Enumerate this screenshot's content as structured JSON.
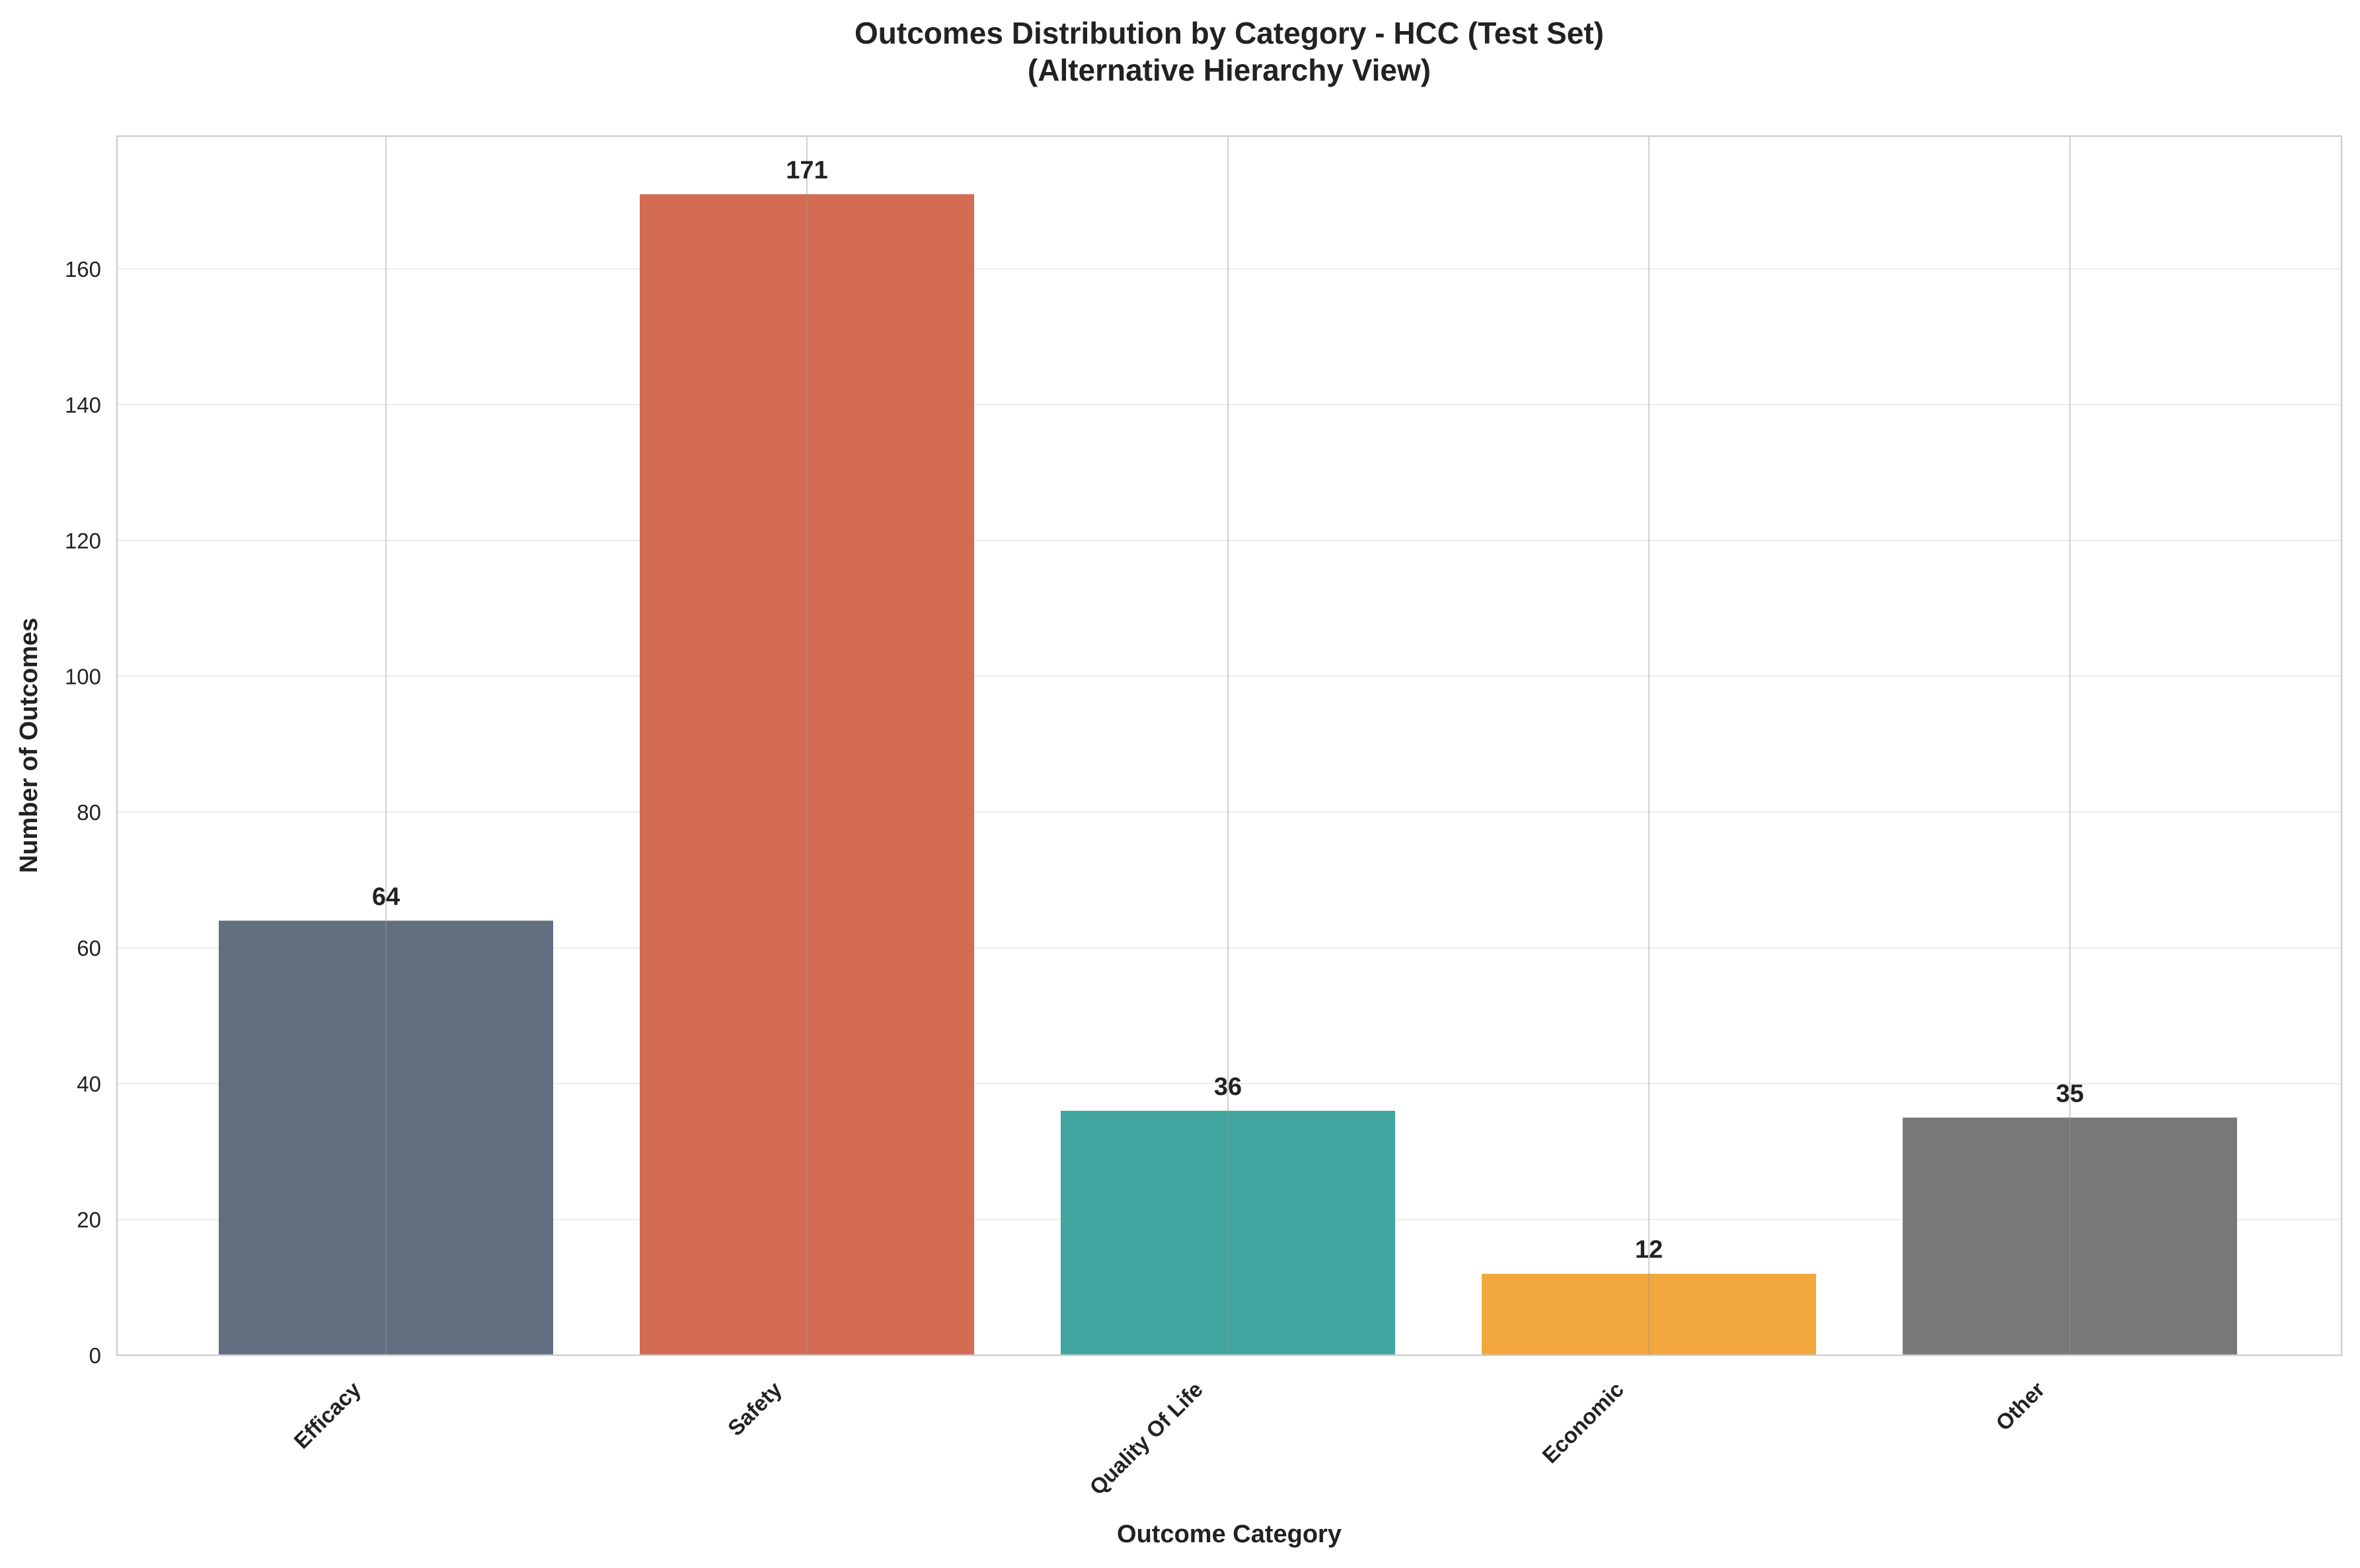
{
  "chart_data": {
    "type": "bar",
    "title_lines": [
      "Outcomes Distribution by Category - HCC (Test Set)",
      "(Alternative Hierarchy View)"
    ],
    "xlabel": "Outcome Category",
    "ylabel": "Number of Outcomes",
    "categories": [
      "Efficacy",
      "Safety",
      "Quality Of Life",
      "Economic",
      "Other"
    ],
    "values": [
      64,
      171,
      36,
      12,
      35
    ],
    "colors": [
      "#586779",
      "#d2644a",
      "#37a19a",
      "#f0a232",
      "#717171"
    ],
    "ylim": [
      0,
      179.55
    ],
    "yticks": [
      0,
      20,
      40,
      60,
      80,
      100,
      120,
      140,
      160
    ],
    "grid": true,
    "legend": "none"
  }
}
